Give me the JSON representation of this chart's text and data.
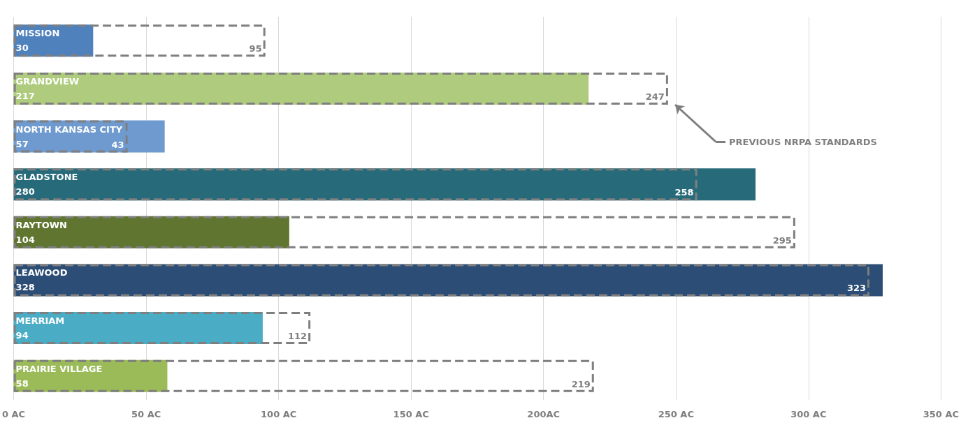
{
  "chart_data": {
    "type": "bar",
    "orientation": "horizontal",
    "categories": [
      "MISSION",
      "GRANDVIEW",
      "NORTH KANSAS CITY",
      "GLADSTONE",
      "RAYTOWN",
      "LEAWOOD",
      "MERRIAM",
      "PRAIRIE VILLAGE"
    ],
    "series": [
      {
        "colors": [
          "#4f81bd",
          "#aecb7e",
          "#6f9acf",
          "#276a7a",
          "#5f7530",
          "#2c4d75",
          "#4bacc6",
          "#9bbb59"
        ],
        "values": [
          30,
          217,
          57,
          280,
          104,
          328,
          94,
          58
        ]
      },
      {
        "color": "#7f7f7f",
        "line_style": "dashed",
        "values": [
          95,
          247,
          43,
          258,
          295,
          323,
          112,
          219
        ]
      }
    ],
    "xlim": [
      0,
      350
    ],
    "xticks": [
      {
        "value": 0,
        "label": "0 AC"
      },
      {
        "value": 50,
        "label": "50 AC"
      },
      {
        "value": 100,
        "label": "100 AC"
      },
      {
        "value": 150,
        "label": "150 AC"
      },
      {
        "value": 200,
        "label": "200AC"
      },
      {
        "value": 250,
        "label": "250 AC"
      },
      {
        "value": 300,
        "label": "300 AC"
      },
      {
        "value": 350,
        "label": "350 AC"
      }
    ],
    "tick_labels": "x",
    "grid": "x",
    "data_labels": true,
    "annotations": [
      "PREVIOUS NRPA STANDARDS"
    ]
  }
}
